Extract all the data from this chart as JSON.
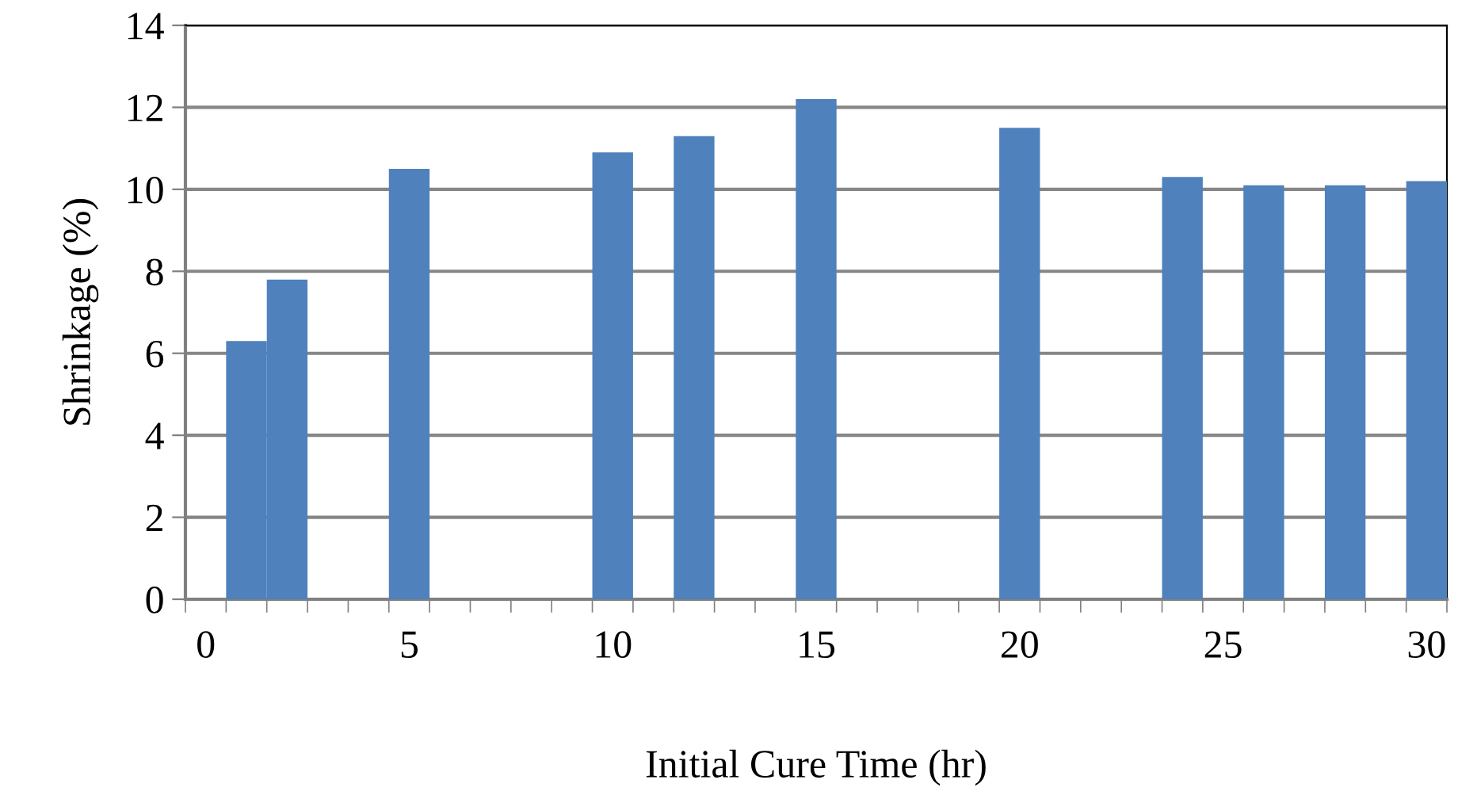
{
  "chart_data": {
    "type": "bar",
    "xlabel": "Initial Cure Time (hr)",
    "ylabel": "Shrinkage (%)",
    "x": [
      1,
      2,
      5,
      10,
      12,
      15,
      20,
      24,
      26,
      28,
      30
    ],
    "values": [
      6.3,
      7.8,
      10.5,
      10.9,
      11.3,
      12.2,
      11.5,
      10.3,
      10.1,
      10.1,
      10.2
    ],
    "color": "#4f81bd",
    "xlim": [
      -0.5,
      30.5
    ],
    "xticks": [
      0,
      5,
      10,
      15,
      20,
      25,
      30,
      {
        "value": -0.5,
        "label": null
      },
      {
        "value": 0.5,
        "label": null
      },
      {
        "value": 1.5,
        "label": null
      },
      {
        "value": 2.5,
        "label": null
      },
      {
        "value": 3.5,
        "label": null
      },
      {
        "value": 4.5,
        "label": null
      },
      {
        "value": 5.5,
        "label": null
      },
      {
        "value": 6.5,
        "label": null
      },
      {
        "value": 7.5,
        "label": null
      },
      {
        "value": 8.5,
        "label": null
      },
      {
        "value": 9.5,
        "label": null
      },
      {
        "value": 10.5,
        "label": null
      },
      {
        "value": 11.5,
        "label": null
      },
      {
        "value": 12.5,
        "label": null
      },
      {
        "value": 13.5,
        "label": null
      },
      {
        "value": 14.5,
        "label": null
      },
      {
        "value": 15.5,
        "label": null
      },
      {
        "value": 16.5,
        "label": null
      },
      {
        "value": 17.5,
        "label": null
      },
      {
        "value": 18.5,
        "label": null
      },
      {
        "value": 19.5,
        "label": null
      },
      {
        "value": 20.5,
        "label": null
      },
      {
        "value": 21.5,
        "label": null
      },
      {
        "value": 22.5,
        "label": null
      },
      {
        "value": 23.5,
        "label": null
      },
      {
        "value": 24.5,
        "label": null
      },
      {
        "value": 25.5,
        "label": null
      },
      {
        "value": 26.5,
        "label": null
      },
      {
        "value": 27.5,
        "label": null
      },
      {
        "value": 28.5,
        "label": null
      },
      {
        "value": 29.5,
        "label": null
      },
      {
        "value": 30.5,
        "label": null
      }
    ],
    "ylim": [
      0,
      14
    ],
    "yticks": [
      0,
      2,
      4,
      6,
      8,
      10,
      12,
      14
    ],
    "grid": "y"
  }
}
